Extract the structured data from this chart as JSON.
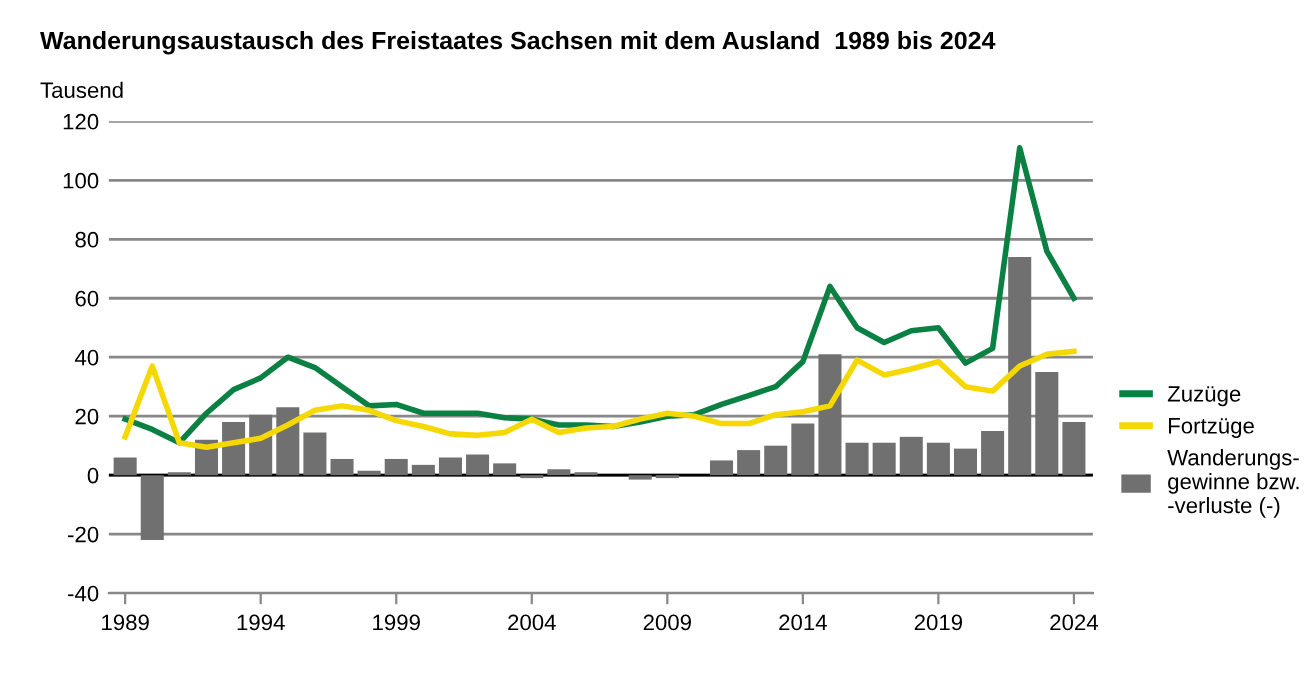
{
  "chart_data": {
    "type": "line",
    "title": "Wanderungsaustausch des Freistaates Sachsen mit dem Ausland  1989 bis 2024",
    "ylabel": "Tausend",
    "x": [
      1989,
      1990,
      1991,
      1992,
      1993,
      1994,
      1995,
      1996,
      1997,
      1998,
      1999,
      2000,
      2001,
      2002,
      2003,
      2004,
      2005,
      2006,
      2007,
      2008,
      2009,
      2010,
      2011,
      2012,
      2013,
      2014,
      2015,
      2016,
      2017,
      2018,
      2019,
      2020,
      2021,
      2022,
      2023,
      2024
    ],
    "series": [
      {
        "name": "Wanderungs-\ngewinne bzw.\n-verluste (-)",
        "type": "bar",
        "color": "#707070",
        "values": [
          6,
          -22,
          1,
          12,
          18,
          20.5,
          23,
          14.5,
          5.5,
          1.5,
          5.5,
          3.5,
          6,
          7,
          4,
          -1,
          2,
          1,
          0,
          -1.5,
          -1,
          0,
          5,
          8.5,
          10,
          17.5,
          41,
          11,
          11,
          13,
          11,
          9,
          15,
          74,
          35,
          18
        ]
      },
      {
        "name": "Zuzüge",
        "color": "#0a8043",
        "values": [
          19,
          15.5,
          11,
          21,
          29,
          33,
          40,
          36.5,
          30,
          23.5,
          24,
          21,
          21,
          21,
          19.5,
          19,
          17,
          17,
          16.5,
          18,
          20,
          20.5,
          24,
          27,
          30,
          38.5,
          64,
          50,
          45,
          49,
          50,
          38,
          43,
          111,
          76,
          60
        ]
      },
      {
        "name": "Fortzüge",
        "color": "#f5d800",
        "values": [
          13,
          37,
          11,
          9.5,
          11,
          12.5,
          17,
          22,
          23.5,
          22,
          18.5,
          16.5,
          14,
          13.5,
          14.5,
          19,
          14.5,
          16,
          16.5,
          19,
          21,
          20,
          17.5,
          17.5,
          20.5,
          21.5,
          23.5,
          39,
          34,
          36,
          38.5,
          30,
          28.5,
          37,
          41,
          42
        ]
      }
    ],
    "xlim": [
      1988.4,
      2024.7
    ],
    "xticks": [
      1989,
      1994,
      1999,
      2004,
      2009,
      2014,
      2019,
      2024
    ],
    "ylim": [
      -40,
      120
    ],
    "yticks": [
      -40,
      -20,
      0,
      20,
      40,
      60,
      80,
      100,
      120
    ],
    "ref_lines": [
      {
        "axis": "y",
        "value": 0,
        "color": "#000000"
      }
    ],
    "grid": "y",
    "legend": "right",
    "marker": "none",
    "line_style": "solid"
  }
}
